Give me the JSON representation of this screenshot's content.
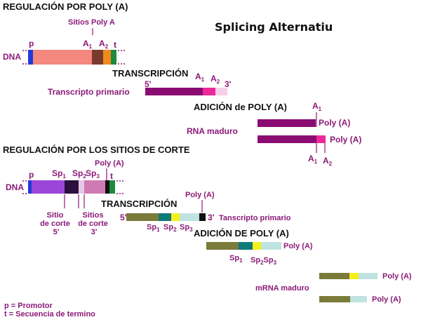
{
  "title": "Splicing Alternatiu",
  "section1": {
    "heading": "REGULACIÓN POR  POLY (A)",
    "sites_label": "Sitios Poly A",
    "dna_label": "DNA",
    "p": "p",
    "t": "t",
    "a": "A",
    "one": "1",
    "two": "2",
    "transcription_heading": "TRANSCRIPCIÓN",
    "five_prime": "5'",
    "three_prime": "3'",
    "primary_transcript": "Transcripto primario",
    "polya_addition_heading": "ADICIÓN de POLY (A)",
    "mature_rna": "RNA maduro",
    "poly_a": "Poly (A)"
  },
  "section2": {
    "heading": "REGULACIÓN POR LOS SITIOS DE CORTE",
    "dna_label": "DNA",
    "p": "p",
    "t": "t",
    "sp": "Sp",
    "one": "1",
    "two": "2",
    "three": "3",
    "poly_a": "Poly (A)",
    "cut_site_1": [
      "Sitio",
      "de corte",
      "5'"
    ],
    "cut_sites_2": [
      "Sitios",
      "de corte",
      "3'"
    ],
    "transcription_heading": "TRANSCRIPCIÓN",
    "five_prime": "5'",
    "three_prime": "3'",
    "primary_transcript": "Tanscripto primario",
    "polya_addition_heading": "ADICIÓN DE POLY (A)",
    "mature_mrna": "mRNA maduro"
  },
  "legend": {
    "promoter": "p = Promotor",
    "terminator": "t = Secuencia de termino"
  },
  "colors": {
    "label": "#8b1a78",
    "promoter_blue": "#1f3cd6",
    "exon_salmon": "#f4877f",
    "a1_brown": "#7a3b2e",
    "a2_orange": "#f08a1c",
    "terminator_green": "#1f8a3e",
    "transcript_purple": "#8a0b72",
    "polya_pink": "#ec2a9a",
    "polya_light": "#f6cfe6",
    "sp_violet": "#9b46d8",
    "sp_dark": "#2a0f3f",
    "sp_mauve": "#d07ab3",
    "olive": "#7a7a3a",
    "teal": "#0f7a7a",
    "yellow": "#f6f01a",
    "light_teal": "#bfe3e0",
    "black": "#111111"
  }
}
